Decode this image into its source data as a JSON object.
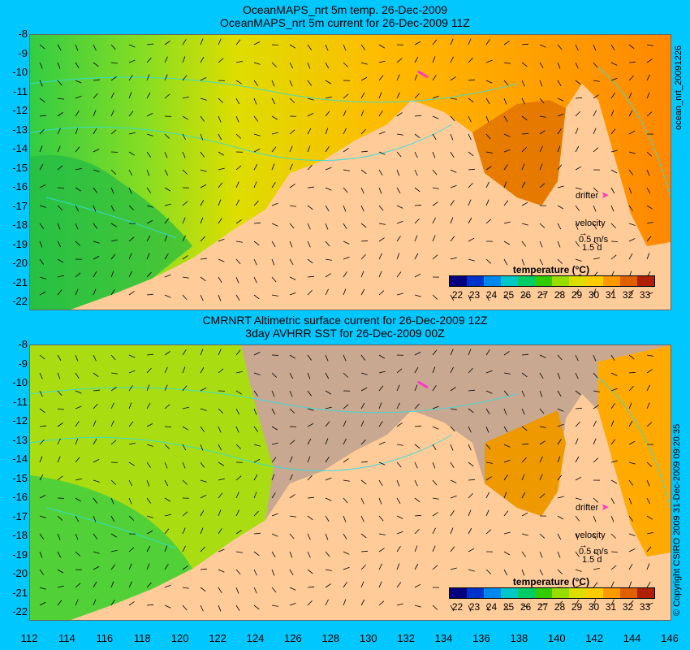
{
  "panel1": {
    "title_line1": "OceanMAPS_nrt 5m temp. 26-Dec-2009",
    "title_line2": "OceanMAPS_nrt 5m current for 26-Dec-2009 11Z",
    "side_label": "ocean_nrt_20091226"
  },
  "panel2": {
    "title_line1": "CMRNRT Altimetric surface current for 26-Dec-2009 12Z",
    "title_line2": "3day AVHRR SST for 26-Dec-2009 00Z",
    "side_label": "© Copyright CSIRO 2009   31-Dec-2009 09:20:35"
  },
  "y_ticks": [
    "-8",
    "-9",
    "-10",
    "-11",
    "-12",
    "-13",
    "-14",
    "-15",
    "-16",
    "-17",
    "-18",
    "-19",
    "-20",
    "-21",
    "-22"
  ],
  "x_ticks": [
    "112",
    "114",
    "116",
    "118",
    "120",
    "122",
    "124",
    "126",
    "128",
    "130",
    "132",
    "134",
    "136",
    "138",
    "140",
    "142",
    "144",
    "146"
  ],
  "legend": {
    "title": "temperature (°C)",
    "ticks": [
      "22",
      "23",
      "24",
      "25",
      "26",
      "27",
      "28",
      "29",
      "30",
      "31",
      "32",
      "33"
    ],
    "colors": [
      "#000080",
      "#0033cc",
      "#0088ee",
      "#00c8c8",
      "#00cc66",
      "#33cc00",
      "#99dd00",
      "#dddd00",
      "#ffcc00",
      "#ff9900",
      "#e06000",
      "#b02000"
    ]
  },
  "drifter_label": "drifter",
  "velocity_label": "velocity",
  "velocity_scale": "0.5 m/s",
  "velocity_days": "1.5 d",
  "colors": {
    "background": "#00c8ff",
    "land": "#ffcc99",
    "no_data": "#c8a890",
    "contour": "#33dddd",
    "drifter": "#ff33cc"
  }
}
